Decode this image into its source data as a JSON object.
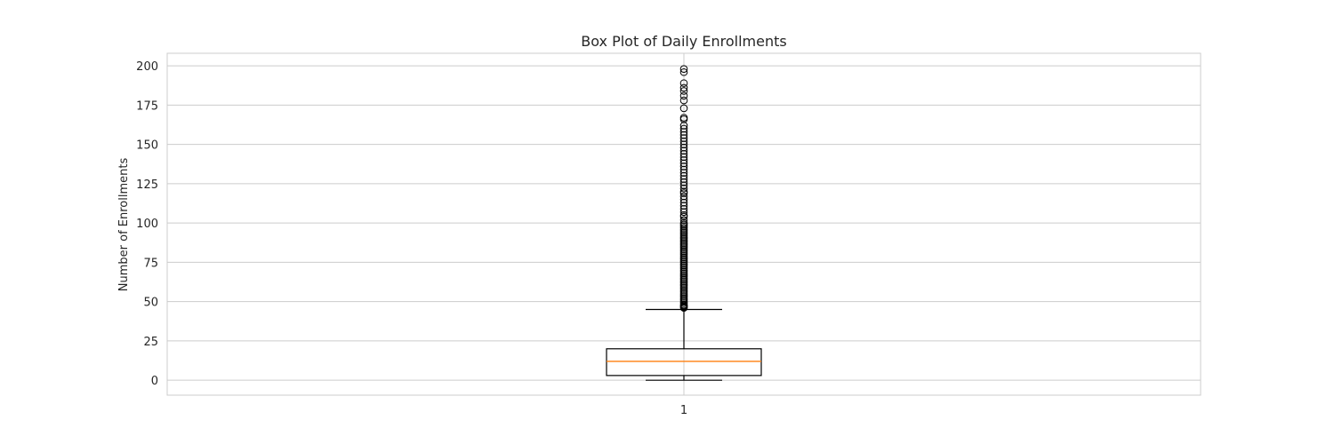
{
  "chart_data": {
    "type": "box",
    "title": "Box Plot of Daily Enrollments",
    "xlabel": "",
    "ylabel": "Number of Enrollments",
    "categories": [
      "1"
    ],
    "yticks": [
      0,
      25,
      50,
      75,
      100,
      125,
      150,
      175,
      200
    ],
    "ylim": [
      -9.5,
      208
    ],
    "grid": true,
    "boxes": [
      {
        "category": "1",
        "whisker_low": 0,
        "q1": 3,
        "median": 12,
        "q3": 20,
        "whisker_high": 45,
        "outliers": [
          46,
          46.5,
          47,
          47.5,
          48,
          49,
          50,
          51,
          52,
          53,
          54,
          55,
          56,
          57,
          58,
          59,
          60,
          61,
          62,
          63,
          64,
          65,
          66,
          67,
          68,
          69,
          70,
          71,
          72,
          73,
          74,
          75,
          76,
          77,
          78,
          79,
          80,
          81,
          82,
          83,
          84,
          85,
          86,
          87,
          88,
          89,
          90,
          91,
          92,
          93,
          94,
          95,
          96,
          97,
          98,
          99,
          100,
          102,
          104,
          105,
          107,
          109,
          111,
          113,
          115,
          117,
          119,
          120,
          122,
          124,
          126,
          128,
          130,
          132,
          134,
          136,
          138,
          140,
          142,
          144,
          146,
          148,
          150,
          152,
          154,
          156,
          158,
          160,
          162,
          166,
          167,
          173,
          178,
          181,
          184,
          186,
          189,
          196,
          198
        ]
      }
    ]
  },
  "colors": {
    "median": "#ff7f0e",
    "box": "#000000",
    "grid": "#cccccc",
    "frame": "#cccccc"
  }
}
